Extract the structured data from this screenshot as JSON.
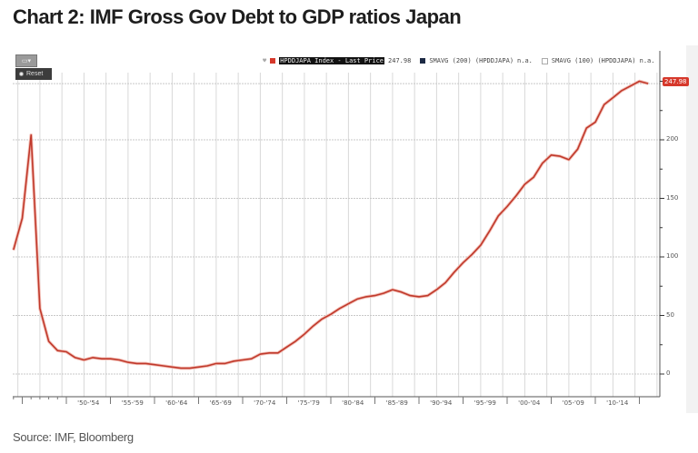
{
  "title": "Chart 2: IMF Gross Gov Debt to GDP ratios Japan",
  "source": "Source: IMF, Bloomberg",
  "widget": {
    "reset_label": "Reset"
  },
  "legend": [
    {
      "label": "HPDDJAPA Index - Last Price",
      "value": "247.98",
      "color": "#d6382b"
    },
    {
      "label": "SMAVG (200) (HPDDJAPA)",
      "value": "n.a.",
      "color": "#1c2a44"
    },
    {
      "label": "SMAVG (100) (HPDDJAPA)",
      "value": "n.a.",
      "color": "#ffffff"
    }
  ],
  "last_value_badge": "247.98",
  "colors": {
    "line": "#c0392b",
    "badge": "#d6382b",
    "grid": "#cfcfcf"
  },
  "chart_data": {
    "type": "line",
    "title": "Chart 2: IMF Gross Gov Debt to GDP ratios Japan",
    "xlabel": "",
    "ylabel": "",
    "ylim": [
      -20,
      262
    ],
    "y_ticks": [
      0,
      50,
      100,
      150,
      200
    ],
    "x_tick_labels": [
      "'50-'54",
      "'55-'59",
      "'60-'64",
      "'65-'69",
      "'70-'74",
      "'75-'79",
      "'80-'84",
      "'85-'89",
      "'90-'94",
      "'95-'99",
      "'00-'04",
      "'05-'09",
      "'10-'14"
    ],
    "grid": true,
    "legend_position": "top-right",
    "series": [
      {
        "name": "HPDDJAPA Index - Last Price",
        "x": [
          1944,
          1945,
          1946,
          1947,
          1948,
          1949,
          1950,
          1951,
          1952,
          1953,
          1954,
          1955,
          1956,
          1957,
          1958,
          1959,
          1960,
          1961,
          1962,
          1963,
          1964,
          1965,
          1966,
          1967,
          1968,
          1969,
          1970,
          1971,
          1972,
          1973,
          1974,
          1975,
          1976,
          1977,
          1978,
          1979,
          1980,
          1981,
          1982,
          1983,
          1984,
          1985,
          1986,
          1987,
          1988,
          1989,
          1990,
          1991,
          1992,
          1993,
          1994,
          1995,
          1996,
          1997,
          1998,
          1999,
          2000,
          2001,
          2002,
          2003,
          2004,
          2005,
          2006,
          2007,
          2008,
          2009,
          2010,
          2011,
          2012,
          2013,
          2014,
          2015,
          2016
        ],
        "values": [
          106,
          133,
          204,
          56,
          28,
          20,
          19,
          14,
          12,
          14,
          13,
          13,
          12,
          10,
          9,
          9,
          8,
          7,
          6,
          5,
          5,
          6,
          7,
          9,
          9,
          11,
          12,
          13,
          17,
          18,
          18,
          23,
          28,
          34,
          41,
          47,
          51,
          56,
          60,
          64,
          66,
          67,
          69,
          72,
          70,
          67,
          66,
          67,
          72,
          78,
          87,
          95,
          102,
          110,
          122,
          135,
          143,
          152,
          162,
          168,
          180,
          187,
          186,
          183,
          192,
          210,
          215,
          230,
          236,
          242,
          246,
          250,
          248
        ]
      },
      {
        "name": "SMAVG (200) (HPDDJAPA)",
        "values": []
      },
      {
        "name": "SMAVG (100) (HPDDJAPA)",
        "values": []
      }
    ],
    "last_value": 247.98
  }
}
